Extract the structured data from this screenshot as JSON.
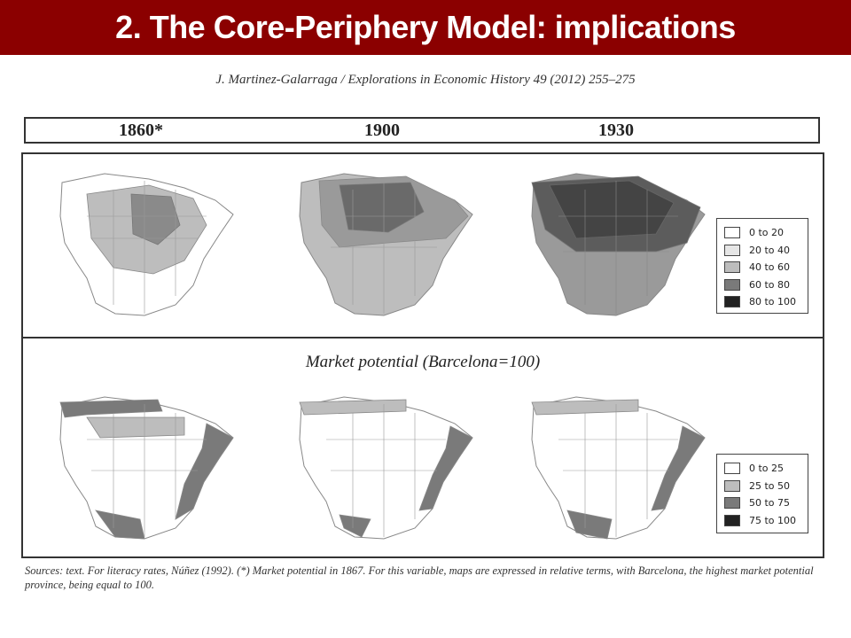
{
  "slide": {
    "title": "2. The Core-Periphery Model: implications",
    "citation": "J. Martinez-Galarraga / Explorations in Economic History 49 (2012) 255–275",
    "years": [
      "1860*",
      "1900",
      "1930"
    ],
    "market_potential_title": "Market potential (Barcelona=100)",
    "sources": "Sources: text. For literacy rates, Núñez (1992). (*) Market potential in 1867. For this variable, maps are expressed in relative terms, with Barcelona, the highest market potential province, being equal to 100."
  },
  "legend_top": {
    "items": [
      {
        "label": "0 to 20",
        "color": "#ffffff"
      },
      {
        "label": "20 to 40",
        "color": "#e6e6e6"
      },
      {
        "label": "40 to 60",
        "color": "#bdbdbd"
      },
      {
        "label": "60 to 80",
        "color": "#7a7a7a"
      },
      {
        "label": "80 to 100",
        "color": "#222222"
      }
    ]
  },
  "legend_bottom": {
    "items": [
      {
        "label": "0 to 25",
        "color": "#ffffff"
      },
      {
        "label": "25 to 50",
        "color": "#bdbdbd"
      },
      {
        "label": "50 to 75",
        "color": "#7a7a7a"
      },
      {
        "label": "75 to 100",
        "color": "#222222"
      }
    ]
  },
  "maps": {
    "top_fill": [
      "#bdbdbd",
      "#9a9a9a",
      "#5c5c5c"
    ],
    "top_core": [
      "#8a8a8a",
      "#6a6a6a",
      "#444444"
    ]
  }
}
